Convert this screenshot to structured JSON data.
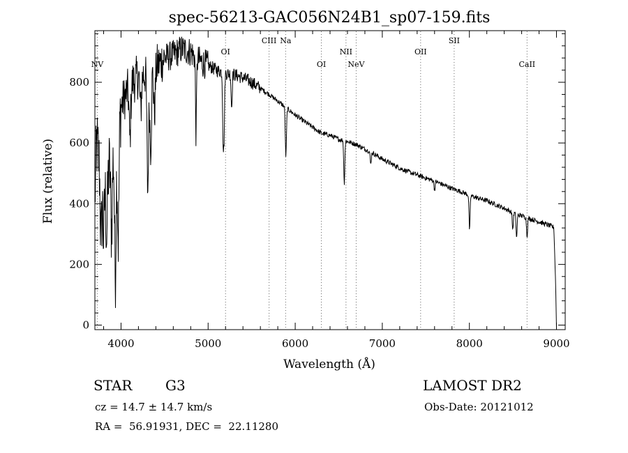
{
  "chart_data": {
    "type": "line",
    "title": "spec-56213-GAC056N24B1_sp07-159.fits",
    "xlabel": "Wavelength (Å)",
    "ylabel": "Flux (relative)",
    "xlim": [
      3700,
      9100
    ],
    "ylim": [
      -15,
      970
    ],
    "xticks": [
      4000,
      5000,
      6000,
      7000,
      8000,
      9000
    ],
    "yticks": [
      0,
      200,
      400,
      600,
      800
    ],
    "grid": false,
    "spectrum_anchors": [
      [
        3700,
        420
      ],
      [
        3720,
        600
      ],
      [
        3760,
        520
      ],
      [
        3800,
        470
      ],
      [
        3850,
        510
      ],
      [
        3900,
        560
      ],
      [
        3950,
        630
      ],
      [
        4000,
        720
      ],
      [
        4100,
        790
      ],
      [
        4200,
        820
      ],
      [
        4300,
        830
      ],
      [
        4400,
        850
      ],
      [
        4500,
        880
      ],
      [
        4600,
        890
      ],
      [
        4700,
        910
      ],
      [
        4800,
        900
      ],
      [
        4900,
        870
      ],
      [
        5000,
        855
      ],
      [
        5100,
        840
      ],
      [
        5200,
        830
      ],
      [
        5300,
        825
      ],
      [
        5400,
        815
      ],
      [
        5500,
        800
      ],
      [
        5600,
        780
      ],
      [
        5700,
        760
      ],
      [
        5800,
        738
      ],
      [
        5900,
        715
      ],
      [
        6000,
        692
      ],
      [
        6100,
        672
      ],
      [
        6200,
        652
      ],
      [
        6300,
        632
      ],
      [
        6400,
        625
      ],
      [
        6500,
        612
      ],
      [
        6600,
        605
      ],
      [
        6700,
        595
      ],
      [
        6800,
        580
      ],
      [
        6900,
        565
      ],
      [
        7000,
        547
      ],
      [
        7100,
        532
      ],
      [
        7200,
        517
      ],
      [
        7300,
        505
      ],
      [
        7400,
        495
      ],
      [
        7500,
        484
      ],
      [
        7600,
        475
      ],
      [
        7700,
        462
      ],
      [
        7800,
        450
      ],
      [
        7900,
        440
      ],
      [
        8000,
        428
      ],
      [
        8100,
        418
      ],
      [
        8200,
        410
      ],
      [
        8300,
        397
      ],
      [
        8400,
        385
      ],
      [
        8500,
        370
      ],
      [
        8600,
        360
      ],
      [
        8700,
        350
      ],
      [
        8800,
        340
      ],
      [
        8900,
        330
      ],
      [
        8970,
        322
      ],
      [
        8990,
        140
      ],
      [
        9000,
        -10
      ]
    ],
    "absorption_lines": [
      {
        "x": 3770,
        "depth": 220
      },
      {
        "x": 3800,
        "depth": 180
      },
      {
        "x": 3835,
        "depth": 200
      },
      {
        "x": 3890,
        "depth": 230
      },
      {
        "x": 3934,
        "depth": 440
      },
      {
        "x": 3968,
        "depth": 380
      },
      {
        "x": 4102,
        "depth": 180
      },
      {
        "x": 4226,
        "depth": 120
      },
      {
        "x": 4307,
        "depth": 390
      },
      {
        "x": 4340,
        "depth": 250
      },
      {
        "x": 4383,
        "depth": 150
      },
      {
        "x": 4861,
        "depth": 250
      },
      {
        "x": 5172,
        "depth": 190
      },
      {
        "x": 5183,
        "depth": 200
      },
      {
        "x": 5270,
        "depth": 110
      },
      {
        "x": 5890,
        "depth": 100
      },
      {
        "x": 5896,
        "depth": 80
      },
      {
        "x": 6563,
        "depth": 140
      },
      {
        "x": 6867,
        "depth": 40
      },
      {
        "x": 7600,
        "depth": 30
      },
      {
        "x": 8002,
        "depth": 115
      },
      {
        "x": 8498,
        "depth": 55
      },
      {
        "x": 8542,
        "depth": 80
      },
      {
        "x": 8662,
        "depth": 60
      }
    ],
    "emission_lines": [
      {
        "x": 3727,
        "label": "NV",
        "row": 1
      },
      {
        "x": 5200,
        "label": "OI",
        "row": 2
      },
      {
        "x": 5700,
        "label": "CIII",
        "row": 3
      },
      {
        "x": 5890,
        "label": "Na",
        "row": 3
      },
      {
        "x": 6300,
        "label": "OI",
        "row": 1
      },
      {
        "x": 6583,
        "label": "NII",
        "row": 2
      },
      {
        "x": 6700,
        "label": "NeV",
        "row": 1
      },
      {
        "x": 7440,
        "label": "OII",
        "row": 2
      },
      {
        "x": 7825,
        "label": "SII",
        "row": 3
      },
      {
        "x": 8662,
        "label": "CaII",
        "row": 1
      }
    ]
  },
  "footer": {
    "object_class": "STAR",
    "subclass": "G3",
    "cz": "cz = 14.7 ± 14.7 km/s",
    "coords": "RA =  56.91931, DEC =  22.11280",
    "survey": "LAMOST DR2",
    "obs_date": "Obs-Date: 20121012"
  }
}
